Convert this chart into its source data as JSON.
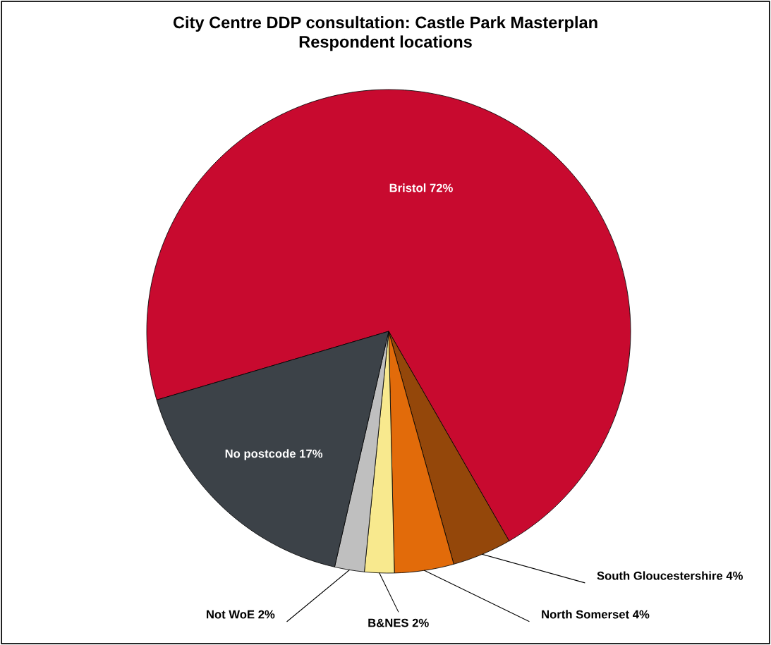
{
  "chart_data": {
    "type": "pie",
    "title": "City Centre DDP consultation: Castle Park Masterplan",
    "subtitle": "Respondent locations",
    "categories": [
      "Bristol",
      "South Gloucestershire",
      "North Somerset",
      "B&NES",
      "Not WoE",
      "No postcode"
    ],
    "values": [
      72,
      4,
      4,
      2,
      2,
      17
    ],
    "value_labels": [
      "72%",
      "4%",
      "4%",
      "2%",
      "2%",
      "17%"
    ],
    "colors": [
      "#c80a2f",
      "#94470a",
      "#e26b0a",
      "#f8e98e",
      "#bfbfbf",
      "#3c4248"
    ],
    "legend": false
  }
}
